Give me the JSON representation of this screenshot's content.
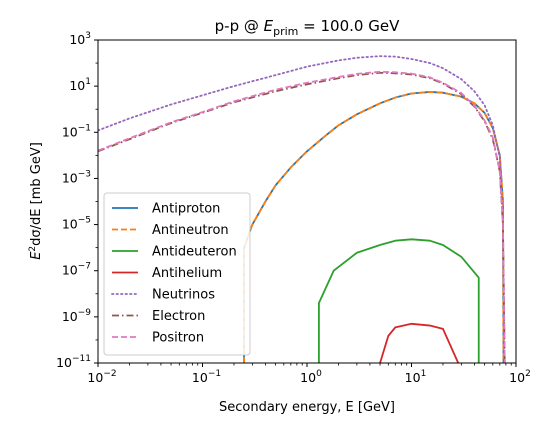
{
  "chart_data": {
    "type": "line",
    "title": {
      "prefix": "p-p @ ",
      "symbol": "E",
      "subscript": "prim",
      "suffix": " = 100.0 GeV"
    },
    "xlabel": "Secondary energy, E [GeV]",
    "ylabel": {
      "parts": [
        "E",
        "2",
        "dσ/dE [mb GeV]"
      ]
    },
    "x_scale": "log",
    "y_scale": "log",
    "xlim": [
      0.01,
      100
    ],
    "ylim": [
      1e-11,
      1000
    ],
    "grid": false,
    "legend_position": "lower-left",
    "x_ticks": [
      {
        "value": 0.01,
        "base": "10",
        "exp": "−2"
      },
      {
        "value": 0.1,
        "base": "10",
        "exp": "−1"
      },
      {
        "value": 1,
        "base": "10",
        "exp": "0"
      },
      {
        "value": 10,
        "base": "10",
        "exp": "1"
      },
      {
        "value": 100,
        "base": "10",
        "exp": "2"
      }
    ],
    "y_ticks": [
      {
        "value": 1e-11,
        "base": "10",
        "exp": "−11"
      },
      {
        "value": 1e-09,
        "base": "10",
        "exp": "−9"
      },
      {
        "value": 1e-07,
        "base": "10",
        "exp": "−7"
      },
      {
        "value": 1e-05,
        "base": "10",
        "exp": "−5"
      },
      {
        "value": 0.001,
        "base": "10",
        "exp": "−3"
      },
      {
        "value": 0.1,
        "base": "10",
        "exp": "−1"
      },
      {
        "value": 10,
        "base": "10",
        "exp": "1"
      },
      {
        "value": 1000,
        "base": "10",
        "exp": "3"
      }
    ],
    "series": [
      {
        "name": "Antiproton",
        "color": "#1f77b4",
        "dash": "solid",
        "x": [
          0.25,
          0.25,
          0.3,
          0.4,
          0.5,
          0.7,
          1,
          1.5,
          2,
          3,
          5,
          7,
          10,
          15,
          20,
          30,
          40,
          50,
          60,
          70,
          75,
          76
        ],
        "y": [
          1e-11,
          1e-06,
          1e-05,
          0.0001,
          0.0005,
          0.003,
          0.015,
          0.07,
          0.2,
          0.6,
          1.8,
          3.2,
          4.8,
          5.6,
          5.2,
          3.5,
          1.8,
          0.7,
          0.15,
          0.01,
          0.0001,
          1e-11
        ]
      },
      {
        "name": "Antineutron",
        "color": "#ff7f0e",
        "dash": "dashed",
        "x": [
          0.25,
          0.25,
          0.3,
          0.4,
          0.5,
          0.7,
          1,
          1.5,
          2,
          3,
          5,
          7,
          10,
          15,
          20,
          30,
          40,
          50,
          60,
          70,
          75,
          76
        ],
        "y": [
          1e-11,
          1e-06,
          1e-05,
          0.0001,
          0.0005,
          0.003,
          0.015,
          0.07,
          0.2,
          0.6,
          1.8,
          3.2,
          4.8,
          5.6,
          5.2,
          3.5,
          1.8,
          0.7,
          0.15,
          0.01,
          0.0001,
          1e-11
        ]
      },
      {
        "name": "Antideuteron",
        "color": "#2ca02c",
        "dash": "solid",
        "x": [
          1.3,
          1.3,
          1.8,
          3,
          5,
          7,
          10,
          15,
          20,
          30,
          44,
          44
        ],
        "y": [
          1e-11,
          4e-09,
          1e-07,
          6e-07,
          1.3e-06,
          2e-06,
          2.3e-06,
          2e-06,
          1.3e-06,
          4e-07,
          5e-08,
          1e-11
        ]
      },
      {
        "name": "Antihelium",
        "color": "#d62728",
        "dash": "solid",
        "x": [
          5,
          6,
          7,
          10,
          15,
          20,
          28
        ],
        "y": [
          1e-11,
          1.5e-10,
          3.5e-10,
          5e-10,
          4.2e-10,
          3e-10,
          1e-11
        ]
      },
      {
        "name": "Neutrinos",
        "color": "#9467bd",
        "dash": "dotted",
        "x": [
          0.01,
          0.02,
          0.05,
          0.1,
          0.2,
          0.5,
          1,
          2,
          3,
          5,
          7,
          10,
          15,
          20,
          30,
          40,
          50,
          60,
          70,
          75,
          78
        ],
        "y": [
          0.12,
          0.4,
          1.6,
          4,
          10,
          30,
          70,
          130,
          170,
          200,
          190,
          150,
          100,
          60,
          20,
          6,
          1.5,
          0.2,
          0.008,
          1e-05,
          1e-11
        ]
      },
      {
        "name": "Electron",
        "color": "#8c564b",
        "dash": "dashdot",
        "x": [
          0.01,
          0.02,
          0.05,
          0.1,
          0.2,
          0.5,
          1,
          2,
          3,
          5,
          7,
          10,
          15,
          20,
          30,
          40,
          50,
          60,
          70,
          75,
          78
        ],
        "y": [
          0.015,
          0.05,
          0.25,
          0.7,
          2,
          6,
          12,
          22,
          30,
          38,
          36,
          32,
          22,
          13,
          4.5,
          1.3,
          0.3,
          0.05,
          0.002,
          1e-05,
          1e-11
        ]
      },
      {
        "name": "Positron",
        "color": "#e377c2",
        "dash": "dashed",
        "x": [
          0.01,
          0.02,
          0.05,
          0.1,
          0.2,
          0.5,
          1,
          2,
          3,
          5,
          7,
          10,
          15,
          20,
          30,
          40,
          50,
          60,
          70,
          75,
          78
        ],
        "y": [
          0.016,
          0.055,
          0.27,
          0.75,
          2.2,
          7,
          14,
          25,
          34,
          42,
          40,
          35,
          24,
          14,
          5,
          1.4,
          0.33,
          0.06,
          0.002,
          1e-05,
          1e-11
        ]
      }
    ]
  }
}
